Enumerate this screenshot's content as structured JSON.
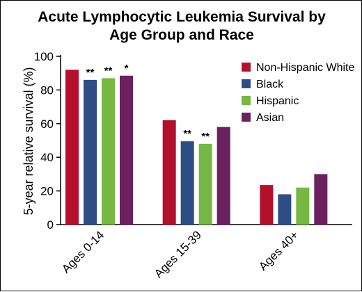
{
  "chart_data": {
    "type": "bar",
    "title": "Acute Lymphocytic Leukemia Survival by Age Group and Race",
    "title_lines": [
      "Acute Lymphocytic Leukemia Survival by",
      "Age Group and Race"
    ],
    "xlabel": "",
    "ylabel": "5-year relative survival (%)",
    "ylim": [
      0,
      100
    ],
    "yticks": [
      0,
      20,
      40,
      60,
      80,
      100
    ],
    "categories": [
      "Ages 0-14",
      "Ages 15-39",
      "Ages 40+"
    ],
    "series": [
      {
        "name": "Non-Hispanic White",
        "color": "#b5102b",
        "values": [
          92,
          62,
          23.5
        ]
      },
      {
        "name": "Black",
        "color": "#2e4d86",
        "values": [
          86,
          49.5,
          18
        ]
      },
      {
        "name": "Hispanic",
        "color": "#76b843",
        "values": [
          87,
          48,
          22
        ]
      },
      {
        "name": "Asian",
        "color": "#6b2060",
        "values": [
          88.5,
          58,
          30
        ]
      }
    ],
    "annotations": [
      [
        "",
        "**",
        "**",
        "*"
      ],
      [
        "",
        "**",
        "**",
        ""
      ],
      [
        "",
        "",
        "",
        ""
      ]
    ],
    "legend_position": "top-right",
    "grid": false
  }
}
